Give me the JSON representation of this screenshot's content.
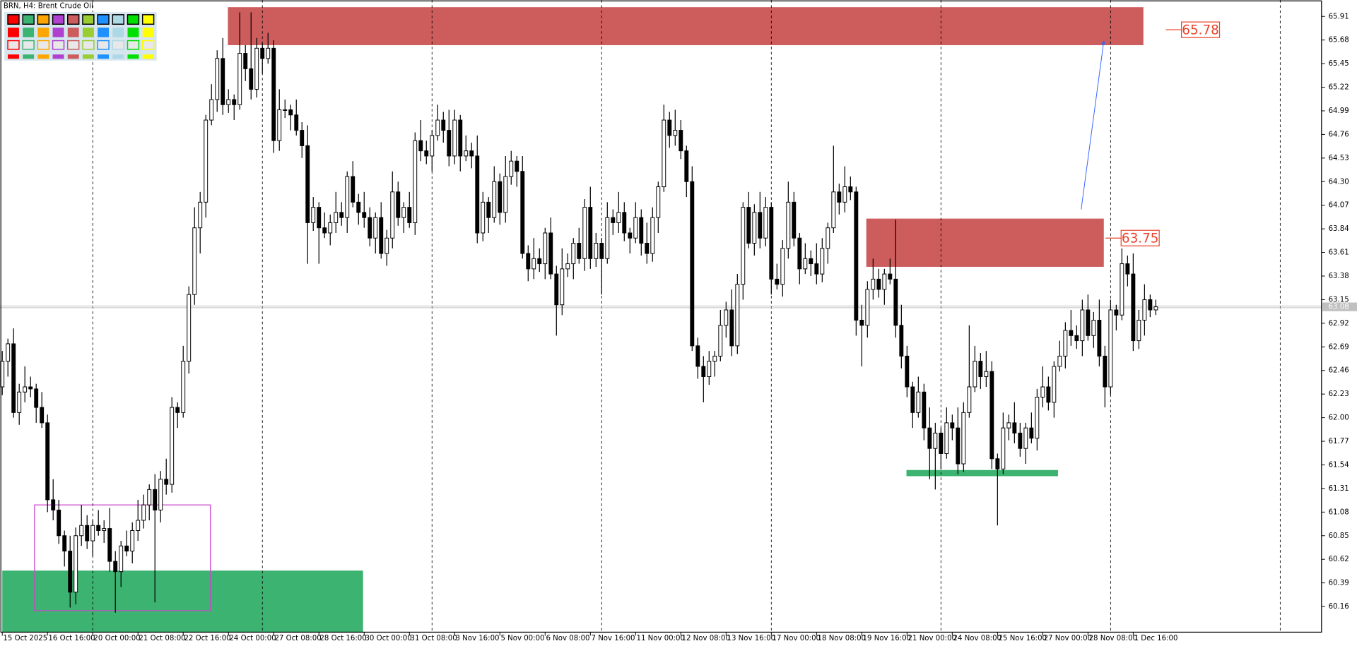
{
  "chart_data": {
    "type": "candlestick",
    "title": "BRN, H4:  Brent Crude Oil",
    "open": [
      62.3,
      62.55,
      62.72,
      62.05,
      62.25,
      62.3,
      62.28,
      62.1,
      61.95,
      61.2,
      61.1,
      60.85,
      60.7,
      60.3,
      60.85,
      60.95,
      60.8,
      60.95,
      60.9,
      60.92,
      60.6,
      60.5,
      60.75,
      60.7,
      60.9,
      61.0,
      61.15,
      61.3,
      61.1,
      61.4,
      61.35,
      62.1,
      62.05,
      62.55,
      63.2,
      63.85,
      64.1,
      64.9,
      65.1,
      65.5,
      65.05,
      65.1,
      65.05,
      65.55,
      65.4,
      65.2,
      65.6,
      65.5,
      65.6,
      64.7,
      65.0,
      65.0,
      64.95,
      64.8,
      64.65,
      63.9,
      64.05,
      63.85,
      63.8,
      63.9,
      64.0,
      63.95,
      64.35,
      64.1,
      64.0,
      63.95,
      63.75,
      63.95,
      63.6,
      63.75,
      64.2,
      63.95,
      64.05,
      63.9,
      64.7,
      64.6,
      64.55,
      64.75,
      64.9,
      64.8,
      64.55,
      64.9,
      64.55,
      64.6,
      64.55,
      63.8,
      64.1,
      63.95,
      64.3,
      64.0,
      64.35,
      64.5,
      64.4,
      63.6,
      63.45,
      63.55,
      63.5,
      63.8,
      63.4,
      63.1,
      63.45,
      63.5,
      63.7,
      63.55,
      64.05,
      63.55,
      63.7,
      63.55,
      63.95,
      63.9,
      64.0,
      63.8,
      63.75,
      63.95,
      63.7,
      63.6,
      63.95,
      64.25,
      64.9,
      64.75,
      64.8,
      64.6,
      64.3,
      62.7,
      62.5,
      62.4,
      62.55,
      62.6,
      62.9,
      63.05,
      62.7,
      63.3,
      64.05,
      63.7,
      64.0,
      63.75,
      64.05,
      63.35,
      63.3,
      63.65,
      64.1,
      63.75,
      63.45,
      63.55,
      63.5,
      63.4,
      63.65,
      63.85,
      64.2,
      64.1,
      64.25,
      64.2,
      62.95,
      62.9,
      63.25,
      63.35,
      63.25,
      63.4,
      63.35,
      62.9,
      62.6,
      62.3,
      62.05,
      62.25,
      61.9,
      61.7,
      61.85,
      61.65,
      61.95,
      61.9,
      61.55,
      62.05,
      62.3,
      62.55,
      62.4,
      62.45,
      61.6,
      61.5,
      61.9,
      61.95,
      61.85,
      61.7,
      61.9,
      61.8,
      62.2,
      62.3,
      62.15,
      62.5,
      62.6,
      62.85,
      62.8,
      62.75,
      63.05,
      62.8,
      62.95,
      62.6,
      62.3,
      63.05,
      63.0,
      63.5,
      63.4,
      62.75,
      62.95,
      63.15,
      63.05
    ],
    "high": [
      62.65,
      62.77,
      62.87,
      62.33,
      62.5,
      62.4,
      62.33,
      62.25,
      62.03,
      61.4,
      61.2,
      60.9,
      60.85,
      60.93,
      61.15,
      61.05,
      61.0,
      61.1,
      61.0,
      61.12,
      60.7,
      60.8,
      60.9,
      60.98,
      61.2,
      61.25,
      61.35,
      61.45,
      61.48,
      61.6,
      62.2,
      62.15,
      62.7,
      63.28,
      64.05,
      64.2,
      64.95,
      65.25,
      65.58,
      65.7,
      65.2,
      65.15,
      65.95,
      65.63,
      65.95,
      65.7,
      65.65,
      65.75,
      65.68,
      65.2,
      65.1,
      65.05,
      65.1,
      64.88,
      64.85,
      64.15,
      64.1,
      64.0,
      63.98,
      64.2,
      64.1,
      64.4,
      64.5,
      64.18,
      64.2,
      64.05,
      64.0,
      64.1,
      63.83,
      64.4,
      64.3,
      64.1,
      64.2,
      64.78,
      64.9,
      64.7,
      64.8,
      65.05,
      64.98,
      65.0,
      65.0,
      64.95,
      64.75,
      64.68,
      64.75,
      64.2,
      64.15,
      64.45,
      64.38,
      64.55,
      64.6,
      64.55,
      64.55,
      63.68,
      63.75,
      63.65,
      63.85,
      63.95,
      63.48,
      63.65,
      63.6,
      63.75,
      63.85,
      64.13,
      64.25,
      63.8,
      63.75,
      64.1,
      64.03,
      64.2,
      64.1,
      63.85,
      64.1,
      64.03,
      63.9,
      64.05,
      64.3,
      65.05,
      64.98,
      65.0,
      64.9,
      64.65,
      64.45,
      62.78,
      62.6,
      62.65,
      62.65,
      63.05,
      63.13,
      63.25,
      63.4,
      64.1,
      64.2,
      64.08,
      64.2,
      64.15,
      64.1,
      63.5,
      63.73,
      64.3,
      64.2,
      63.8,
      63.7,
      63.63,
      63.7,
      63.75,
      63.9,
      64.65,
      64.28,
      64.45,
      64.35,
      64.25,
      63.1,
      63.33,
      63.55,
      63.45,
      63.45,
      63.55,
      63.93,
      63.1,
      62.7,
      62.35,
      62.4,
      62.33,
      62.1,
      61.95,
      61.9,
      62.1,
      62.03,
      62.1,
      62.15,
      62.9,
      62.7,
      62.63,
      62.65,
      62.55,
      61.65,
      62.05,
      62.03,
      62.15,
      61.95,
      61.95,
      62.05,
      62.28,
      62.5,
      62.4,
      62.55,
      62.75,
      62.93,
      63.05,
      62.9,
      63.15,
      63.2,
      63.03,
      63.15,
      62.7,
      63.15,
      63.1,
      63.65,
      63.58,
      63.6,
      63.05,
      63.3,
      63.2,
      63.15
    ],
    "low": [
      62.22,
      62.4,
      62.0,
      61.93,
      62.15,
      62.2,
      61.95,
      61.9,
      61.08,
      61.0,
      60.77,
      60.55,
      60.15,
      60.18,
      60.75,
      60.72,
      60.65,
      60.85,
      60.78,
      60.5,
      60.1,
      60.35,
      60.65,
      60.58,
      60.8,
      60.92,
      61.0,
      60.2,
      60.98,
      61.25,
      61.27,
      61.9,
      62.0,
      62.43,
      63.1,
      63.6,
      63.95,
      64.85,
      64.98,
      64.95,
      64.97,
      64.9,
      65.0,
      65.28,
      65.1,
      65.12,
      65.35,
      65.45,
      64.58,
      64.6,
      64.92,
      64.8,
      64.75,
      64.53,
      63.5,
      63.82,
      63.5,
      63.75,
      63.68,
      63.8,
      63.87,
      63.8,
      64.05,
      63.88,
      63.85,
      63.67,
      63.6,
      63.55,
      63.48,
      63.65,
      63.87,
      63.8,
      63.85,
      63.78,
      64.5,
      64.47,
      64.4,
      64.7,
      64.68,
      64.45,
      64.47,
      64.4,
      64.5,
      64.43,
      63.7,
      63.72,
      63.8,
      63.9,
      63.88,
      63.9,
      64.27,
      64.25,
      63.55,
      63.33,
      63.35,
      63.42,
      63.35,
      63.35,
      62.8,
      63.0,
      63.37,
      63.35,
      63.5,
      63.43,
      63.45,
      63.47,
      63.2,
      63.5,
      63.78,
      63.8,
      63.72,
      63.6,
      63.7,
      63.58,
      63.5,
      63.52,
      63.8,
      64.2,
      64.63,
      64.65,
      64.52,
      64.15,
      62.65,
      62.38,
      62.15,
      62.32,
      62.4,
      62.55,
      62.78,
      62.6,
      62.62,
      63.15,
      63.65,
      63.58,
      63.65,
      63.67,
      63.2,
      63.25,
      63.18,
      63.55,
      63.67,
      63.3,
      63.4,
      63.38,
      63.3,
      63.32,
      63.5,
      63.8,
      63.98,
      64.0,
      64.12,
      62.8,
      62.5,
      62.78,
      63.15,
      63.17,
      63.1,
      63.3,
      62.78,
      62.48,
      62.2,
      61.9,
      62.0,
      61.78,
      61.4,
      61.3,
      61.5,
      61.6,
      61.78,
      61.45,
      61.47,
      62.0,
      62.25,
      62.28,
      62.3,
      61.5,
      60.95,
      61.45,
      61.78,
      61.75,
      61.62,
      61.55,
      61.75,
      61.68,
      62.1,
      62.07,
      62.0,
      62.45,
      62.48,
      62.7,
      62.67,
      62.6,
      62.75,
      62.68,
      62.5,
      62.1,
      62.22,
      62.85,
      62.95,
      63.28,
      62.65,
      62.67,
      62.8,
      62.98,
      63.0
    ],
    "close": [
      62.55,
      62.72,
      62.05,
      62.25,
      62.3,
      62.28,
      62.1,
      61.95,
      61.2,
      61.1,
      60.85,
      60.7,
      60.3,
      60.85,
      60.95,
      60.8,
      60.95,
      60.9,
      60.92,
      60.6,
      60.5,
      60.75,
      60.7,
      60.9,
      61.0,
      61.15,
      61.3,
      61.1,
      61.4,
      61.35,
      62.1,
      62.05,
      62.55,
      63.2,
      63.85,
      64.1,
      64.9,
      65.1,
      65.5,
      65.05,
      65.1,
      65.05,
      65.55,
      65.4,
      65.2,
      65.6,
      65.5,
      65.6,
      64.7,
      65.0,
      65.0,
      64.95,
      64.8,
      64.65,
      63.9,
      64.05,
      63.85,
      63.8,
      63.9,
      64.0,
      63.95,
      64.35,
      64.1,
      64.0,
      63.95,
      63.75,
      63.95,
      63.6,
      63.75,
      64.2,
      63.95,
      64.05,
      63.9,
      64.7,
      64.6,
      64.55,
      64.75,
      64.9,
      64.8,
      64.55,
      64.9,
      64.55,
      64.6,
      64.55,
      63.8,
      64.1,
      63.95,
      64.3,
      64.0,
      64.35,
      64.5,
      64.4,
      63.6,
      63.45,
      63.55,
      63.5,
      63.8,
      63.4,
      63.1,
      63.45,
      63.5,
      63.7,
      63.55,
      64.05,
      63.55,
      63.7,
      63.55,
      63.95,
      63.9,
      64.0,
      63.8,
      63.75,
      63.95,
      63.7,
      63.6,
      63.95,
      64.25,
      64.9,
      64.75,
      64.8,
      64.6,
      64.3,
      62.7,
      62.5,
      62.4,
      62.55,
      62.6,
      62.9,
      63.05,
      62.7,
      63.3,
      64.05,
      63.7,
      64.0,
      63.75,
      64.05,
      63.35,
      63.3,
      63.65,
      64.1,
      63.75,
      63.45,
      63.55,
      63.5,
      63.4,
      63.65,
      63.85,
      64.2,
      64.1,
      64.25,
      64.2,
      62.95,
      62.9,
      63.25,
      63.35,
      63.25,
      63.4,
      63.35,
      62.9,
      62.6,
      62.3,
      62.05,
      62.25,
      61.9,
      61.7,
      61.85,
      61.65,
      61.95,
      61.9,
      61.55,
      62.05,
      62.3,
      62.55,
      62.4,
      62.45,
      61.6,
      61.5,
      61.9,
      61.95,
      61.85,
      61.7,
      61.9,
      61.8,
      62.2,
      62.3,
      62.15,
      62.5,
      62.6,
      62.85,
      62.8,
      62.75,
      63.05,
      62.8,
      62.95,
      62.6,
      62.3,
      63.05,
      63.0,
      63.5,
      63.4,
      62.75,
      62.95,
      63.15,
      63.05,
      63.08
    ],
    "colors": {
      "up": "#ffffff",
      "down": "#000000",
      "outline": "#000000"
    },
    "xlim": [
      -0.4,
      233.3
    ],
    "xticks": [
      {
        "value": 0,
        "label": "15 Oct 2025"
      },
      {
        "value": 8,
        "label": "16 Oct 16:00"
      },
      {
        "value": 16,
        "label": "20 Oct 00:00"
      },
      {
        "value": 24,
        "label": "21 Oct 08:00"
      },
      {
        "value": 32,
        "label": "22 Oct 16:00"
      },
      {
        "value": 40,
        "label": "24 Oct 00:00"
      },
      {
        "value": 48,
        "label": "27 Oct 08:00"
      },
      {
        "value": 56,
        "label": "28 Oct 16:00"
      },
      {
        "value": 64,
        "label": "30 Oct 00:00"
      },
      {
        "value": 72,
        "label": "31 Oct 08:00"
      },
      {
        "value": 80,
        "label": "3 Nov 16:00"
      },
      {
        "value": 88,
        "label": "5 Nov 00:00"
      },
      {
        "value": 96,
        "label": "6 Nov 08:00"
      },
      {
        "value": 104,
        "label": "7 Nov 16:00"
      },
      {
        "value": 112,
        "label": "11 Nov 00:00"
      },
      {
        "value": 120,
        "label": "12 Nov 08:00"
      },
      {
        "value": 128,
        "label": "13 Nov 16:00"
      },
      {
        "value": 136,
        "label": "17 Nov 00:00"
      },
      {
        "value": 144,
        "label": "18 Nov 08:00"
      },
      {
        "value": 152,
        "label": "19 Nov 16:00"
      },
      {
        "value": 160,
        "label": "21 Nov 00:00"
      },
      {
        "value": 168,
        "label": "24 Nov 08:00"
      },
      {
        "value": 176,
        "label": "25 Nov 16:00"
      },
      {
        "value": 184,
        "label": "27 Nov 00:00"
      },
      {
        "value": 192,
        "label": "28 Nov 08:00"
      },
      {
        "value": 200,
        "label": "1 Dec 16:00"
      }
    ],
    "ylim": [
      59.91,
      66.07
    ],
    "yticks": [
      65.91,
      65.68,
      65.45,
      65.22,
      64.99,
      64.76,
      64.53,
      {
        "value": 64.3,
        "label": "64.30"
      },
      64.07,
      63.84,
      63.61,
      63.38,
      63.15,
      62.92,
      62.69,
      62.46,
      62.23,
      {
        "value": 62.0,
        "label": "62.00"
      },
      61.77,
      61.54,
      61.31,
      61.08,
      60.85,
      60.62,
      60.39,
      60.16
    ],
    "last_price": 63.08,
    "zones": [
      {
        "x": [
          39.9,
          201.8
        ],
        "y": [
          65.63,
          66.0
        ],
        "color": "#cd5c5c",
        "style": "filled"
      },
      {
        "x": [
          152.8,
          194.8
        ],
        "y": [
          63.47,
          63.94
        ],
        "color": "#cd5c5c",
        "style": "filled"
      },
      {
        "x": [
          0,
          63.8
        ],
        "y": [
          59.91,
          60.51
        ],
        "color": "#3cb371",
        "style": "filled"
      },
      {
        "x": [
          159.9,
          186.7
        ],
        "y": [
          61.43,
          61.49
        ],
        "color": "#3cb371",
        "style": "filled"
      },
      {
        "x": [
          5.7,
          36.8
        ],
        "y": [
          60.12,
          61.15
        ],
        "color": "#cc44cc",
        "style": "outline"
      }
    ],
    "trendline": {
      "x": [
        190.8,
        194.8
      ],
      "y": [
        64.03,
        65.67
      ],
      "color": "#3366ff"
    },
    "price_labels": [
      65.78,
      63.75
    ],
    "label_color": "#e8452c"
  }
}
